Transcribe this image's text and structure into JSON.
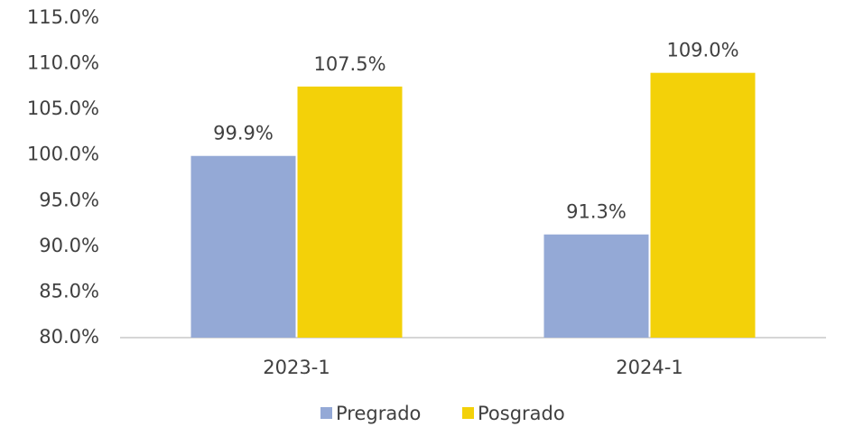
{
  "chart_data": {
    "type": "bar",
    "categories": [
      "2023-1",
      "2024-1"
    ],
    "series": [
      {
        "name": "Pregrado",
        "color": "#94a9d6",
        "values": [
          99.9,
          91.3
        ],
        "value_labels": [
          "99.9%",
          "91.3%"
        ]
      },
      {
        "name": "Posgrado",
        "color": "#f3d109",
        "values": [
          107.5,
          109.0
        ],
        "value_labels": [
          "107.5%",
          "109.0%"
        ]
      }
    ],
    "ylim": [
      80,
      115
    ],
    "yticks": [
      {
        "value": 80,
        "label": "80.0%"
      },
      {
        "value": 85,
        "label": "85.0%"
      },
      {
        "value": 90,
        "label": "90.0%"
      },
      {
        "value": 95,
        "label": "95.0%"
      },
      {
        "value": 100,
        "label": "100.0%"
      },
      {
        "value": 105,
        "label": "105.0%"
      },
      {
        "value": 110,
        "label": "110.0%"
      },
      {
        "value": 115,
        "label": "115.0%"
      }
    ],
    "grid": false,
    "legend": "bottom"
  }
}
